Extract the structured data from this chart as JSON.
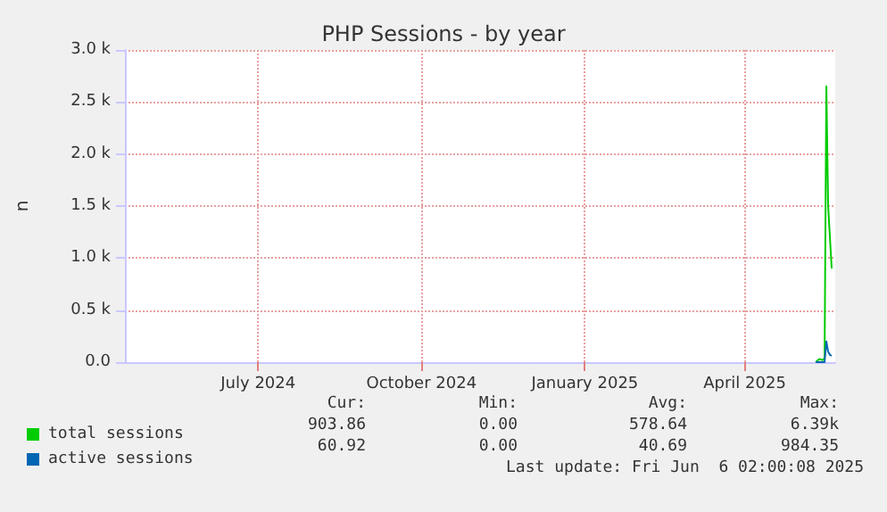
{
  "chart_data": {
    "type": "line",
    "title": "PHP Sessions - by year",
    "ylabel": "n",
    "xlim": [
      "2024-05-02",
      "2025-06-06"
    ],
    "xticks": [
      {
        "value": "2024-07-16",
        "label": "July 2024"
      },
      {
        "value": "2024-10-16",
        "label": "October 2024"
      },
      {
        "value": "2025-01-16",
        "label": "January 2025"
      },
      {
        "value": "2025-04-16",
        "label": "April 2025"
      }
    ],
    "ylim": [
      0,
      3000
    ],
    "yticks": [
      {
        "value": 0,
        "label": "0.0"
      },
      {
        "value": 500,
        "label": "0.5 k"
      },
      {
        "value": 1000,
        "label": "1.0 k"
      },
      {
        "value": 1500,
        "label": "1.5 k"
      },
      {
        "value": 2000,
        "label": "2.0 k"
      },
      {
        "value": 2500,
        "label": "2.5 k"
      },
      {
        "value": 3000,
        "label": "3.0 k"
      }
    ],
    "grid": true,
    "legend": "bottom left",
    "marker": "none",
    "line_style": "solid",
    "series": [
      {
        "name": "total sessions",
        "color": "#00cc00",
        "x": [
          "2025-05-26",
          "2025-05-28",
          "2025-05-30",
          "2025-05-31",
          "2025-06-01",
          "2025-06-02",
          "2025-06-03",
          "2025-06-04"
        ],
        "values": [
          0,
          30,
          20,
          40,
          2650,
          1500,
          1200,
          900
        ]
      },
      {
        "name": "active sessions",
        "color": "#0066b3",
        "x": [
          "2025-05-26",
          "2025-05-28",
          "2025-05-30",
          "2025-05-31",
          "2025-06-01",
          "2025-06-02",
          "2025-06-03",
          "2025-06-04"
        ],
        "values": [
          0,
          0,
          0,
          0,
          200,
          100,
          70,
          60
        ]
      }
    ],
    "annotations": [
      "Cur:",
      "Min:",
      "Avg:",
      "Max:",
      "903.86",
      "0.00",
      "578.64",
      "6.39k",
      "60.92",
      "0.00",
      "40.69",
      "984.35",
      "Last update: Fri Jun  6 02:00:08 2025"
    ]
  }
}
